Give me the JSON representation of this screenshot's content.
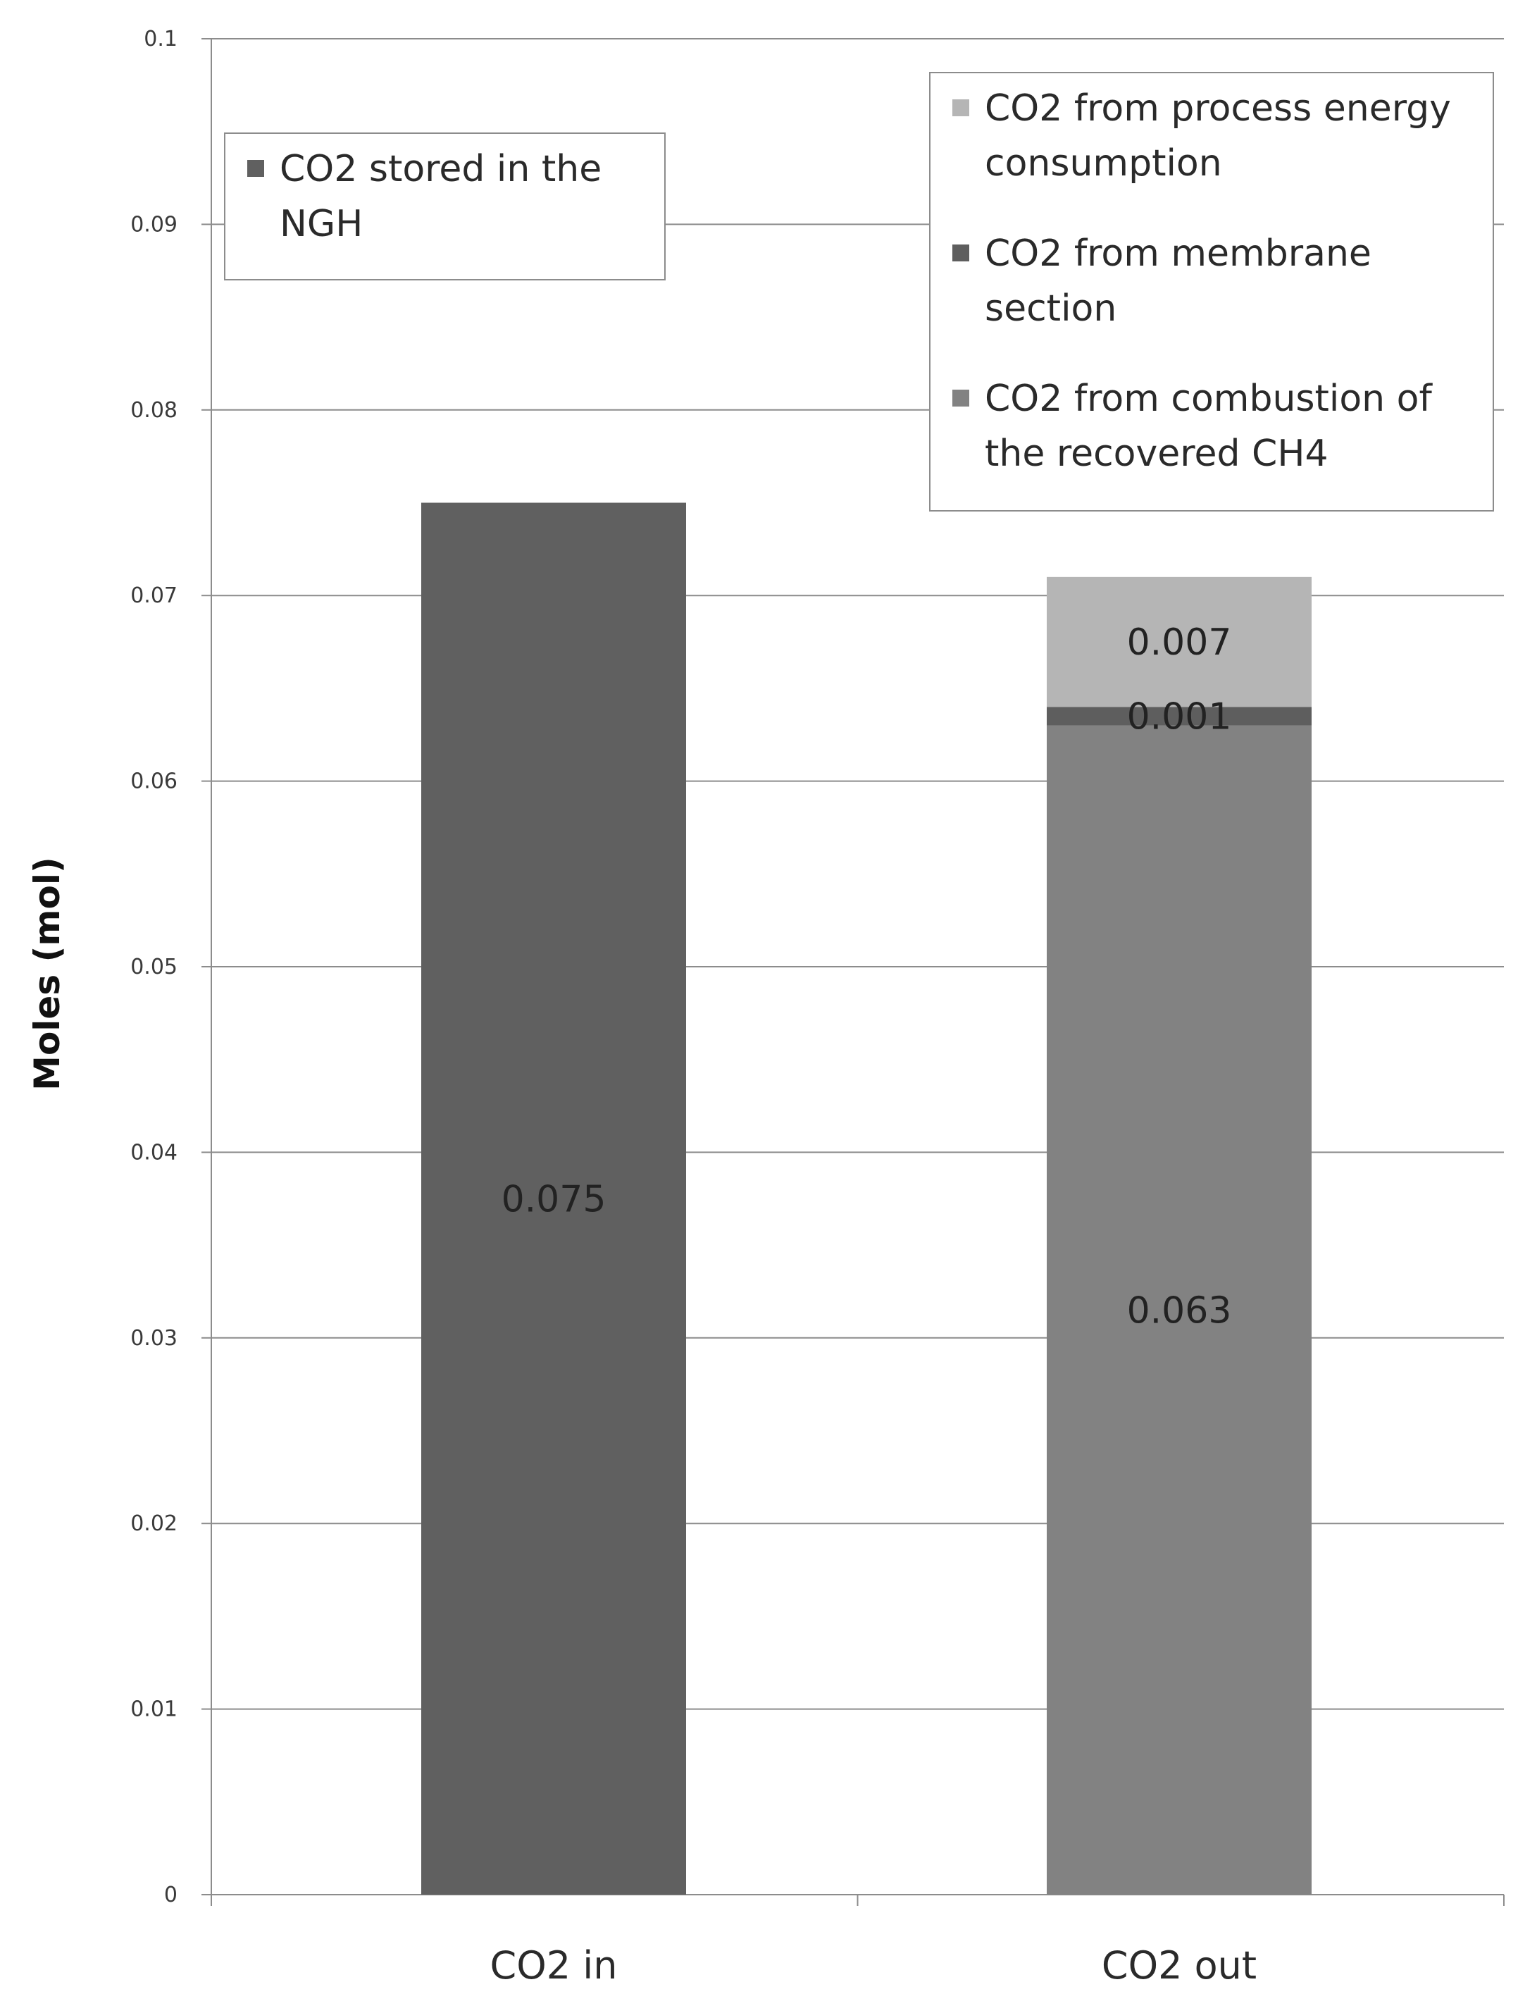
{
  "chart_data": {
    "type": "bar",
    "stacked": true,
    "title": "",
    "xlabel": "",
    "ylabel": "Moles (mol)",
    "ylim": [
      0,
      0.1
    ],
    "yticks": [
      "0",
      "0.01",
      "0.02",
      "0.03",
      "0.04",
      "0.05",
      "0.06",
      "0.07",
      "0.08",
      "0.09",
      "0.1"
    ],
    "grid": "horizontal",
    "categories": [
      "CO2 in",
      "CO2 out"
    ],
    "series": [
      {
        "name": "CO2 stored in the NGH",
        "color": "#606060",
        "values": [
          0.075,
          null
        ],
        "labels": [
          "0.075",
          ""
        ]
      },
      {
        "name": "CO2 from combustion of the recovered CH4",
        "color": "#828282",
        "values": [
          null,
          0.063
        ],
        "labels": [
          "",
          "0.063"
        ]
      },
      {
        "name": "CO2 from membrane section",
        "color": "#5e5e5e",
        "values": [
          null,
          0.001
        ],
        "labels": [
          "",
          "0.001"
        ]
      },
      {
        "name": "CO2 from process energy consumption",
        "color": "#b5b5b5",
        "values": [
          null,
          0.007
        ],
        "labels": [
          "",
          "0.007"
        ]
      }
    ],
    "legends": [
      {
        "placement": "top-left",
        "entries": [
          {
            "lines": [
              "CO2 stored in the",
              "NGH"
            ],
            "color": "#606060"
          }
        ]
      },
      {
        "placement": "top-right",
        "entries": [
          {
            "lines": [
              "CO2 from process energy",
              "consumption"
            ],
            "color": "#b5b5b5"
          },
          {
            "lines": [
              "CO2 from membrane",
              "section"
            ],
            "color": "#5e5e5e"
          },
          {
            "lines": [
              "CO2 from combustion of",
              "the recovered CH4"
            ],
            "color": "#828282"
          }
        ]
      }
    ]
  }
}
